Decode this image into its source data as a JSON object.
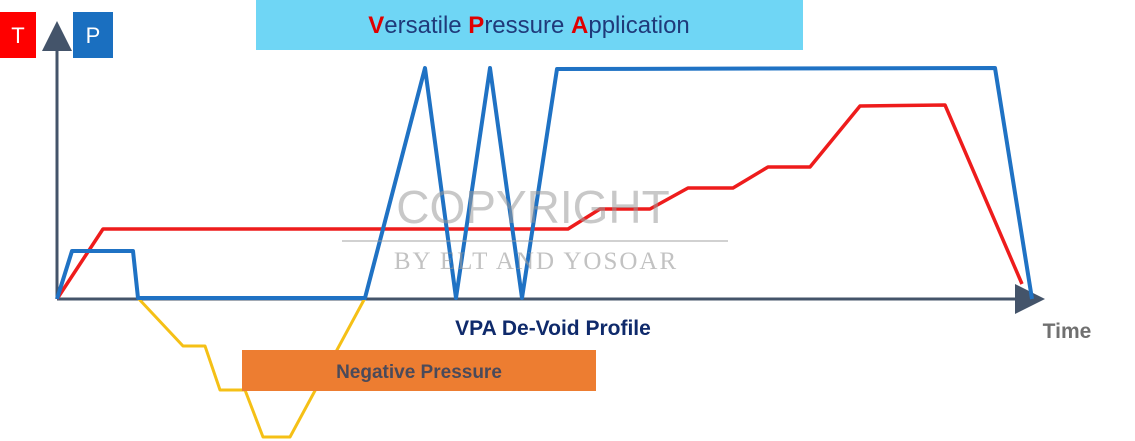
{
  "title": {
    "parts": [
      {
        "text": "V",
        "color": "#e00000"
      },
      {
        "text": "ersatile ",
        "color": "#1f3a7a"
      },
      {
        "text": "P",
        "color": "#e00000"
      },
      {
        "text": "ressure ",
        "color": "#1f3a7a"
      },
      {
        "text": "A",
        "color": "#e00000"
      },
      {
        "text": "pplication",
        "color": "#1f3a7a"
      }
    ],
    "background": "#6fd6f5"
  },
  "badges": {
    "temperature": {
      "text": "T",
      "color": "#ff0000"
    },
    "pressure": {
      "text": "P",
      "color": "#1a6fc0"
    }
  },
  "axis": {
    "x_label": "Time",
    "caption": "VPA De-Void Profile"
  },
  "negative_label": {
    "text": "Negative Pressure",
    "background": "#ed7d31"
  },
  "watermark": {
    "line1": "COPYRIGHT",
    "line2": "BY ELT AND YOSOAR"
  },
  "colors": {
    "temperature": "#ee1c1c",
    "pressure": "#1f72c4",
    "negative": "#f5c016",
    "axis": "#44546a"
  }
}
